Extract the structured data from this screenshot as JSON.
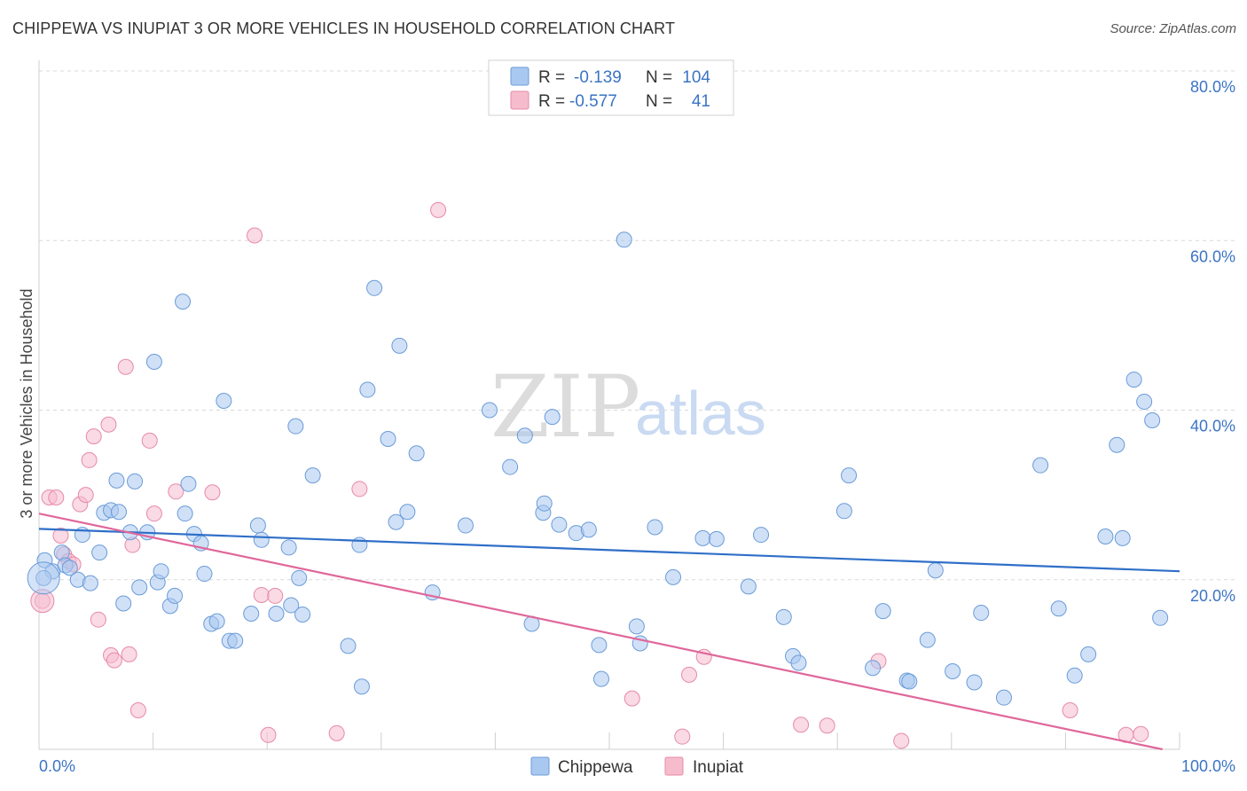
{
  "title": "CHIPPEWA VS INUPIAT 3 OR MORE VEHICLES IN HOUSEHOLD CORRELATION CHART",
  "source": "Source: ZipAtlas.com",
  "watermark": {
    "left": "ZIP",
    "right": "atlas"
  },
  "colors": {
    "chippewa_fill": "#a9c8f0",
    "chippewa_stroke": "#6a9bd8",
    "chippewa_line": "#2f6fc8",
    "inupiat_fill": "#f6bccd",
    "inupiat_stroke": "#e68aa8",
    "inupiat_line": "#e0679a",
    "tick_color": "#3b74c4",
    "grid": "#d9d9d9"
  },
  "legend_top": {
    "rows": [
      {
        "r_label": "R =",
        "r_value": "-0.139",
        "n_label": "N =",
        "n_value": "104"
      },
      {
        "r_label": "R =",
        "r_value": "-0.577",
        "n_label": "N =",
        "n_value": "41"
      }
    ]
  },
  "legend_bottom": {
    "items": [
      "Chippewa",
      "Inupiat"
    ]
  },
  "chart_data": {
    "type": "scatter",
    "title": "CHIPPEWA VS INUPIAT 3 OR MORE VEHICLES IN HOUSEHOLD CORRELATION CHART",
    "xlabel": "",
    "ylabel": "3 or more Vehicles in Household",
    "xlim": [
      0,
      100
    ],
    "ylim": [
      0,
      80
    ],
    "x_tick_labels": [
      "0.0%",
      "100.0%"
    ],
    "y_ticks": [
      20,
      40,
      60,
      80
    ],
    "y_tick_labels": [
      "20.0%",
      "40.0%",
      "60.0%",
      "80.0%"
    ],
    "grid": true,
    "legend_position": "bottom-center",
    "series": [
      {
        "name": "Chippewa",
        "R": -0.139,
        "N": 104,
        "trend": {
          "x": [
            0,
            100
          ],
          "y": [
            26.0,
            21.0
          ]
        },
        "points": [
          [
            0.5,
            22.3
          ],
          [
            1.2,
            21.0
          ],
          [
            2.0,
            23.2
          ],
          [
            2.3,
            21.7
          ],
          [
            2.7,
            21.4
          ],
          [
            3.4,
            20.0
          ],
          [
            3.8,
            25.3
          ],
          [
            4.5,
            19.6
          ],
          [
            5.3,
            23.2
          ],
          [
            5.7,
            27.9
          ],
          [
            6.3,
            28.2
          ],
          [
            6.8,
            31.7
          ],
          [
            7.4,
            17.2
          ],
          [
            8.0,
            25.6
          ],
          [
            8.4,
            31.6
          ],
          [
            8.8,
            19.1
          ],
          [
            9.5,
            25.6
          ],
          [
            10.1,
            45.7
          ],
          [
            10.4,
            19.7
          ],
          [
            10.7,
            21.0
          ],
          [
            11.5,
            16.9
          ],
          [
            11.9,
            18.1
          ],
          [
            12.6,
            52.8
          ],
          [
            12.8,
            27.8
          ],
          [
            13.1,
            31.3
          ],
          [
            13.6,
            25.4
          ],
          [
            14.2,
            24.3
          ],
          [
            14.5,
            20.7
          ],
          [
            15.1,
            14.8
          ],
          [
            15.6,
            15.1
          ],
          [
            16.2,
            41.1
          ],
          [
            16.7,
            12.8
          ],
          [
            17.2,
            12.8
          ],
          [
            18.6,
            16.0
          ],
          [
            19.2,
            26.4
          ],
          [
            19.5,
            24.7
          ],
          [
            20.8,
            16.0
          ],
          [
            21.9,
            23.8
          ],
          [
            22.1,
            17.0
          ],
          [
            22.5,
            38.1
          ],
          [
            22.8,
            20.2
          ],
          [
            23.1,
            15.9
          ],
          [
            24.0,
            32.3
          ],
          [
            27.1,
            12.2
          ],
          [
            28.1,
            24.1
          ],
          [
            28.3,
            7.4
          ],
          [
            28.8,
            42.4
          ],
          [
            29.4,
            54.4
          ],
          [
            30.6,
            36.6
          ],
          [
            31.3,
            26.8
          ],
          [
            31.6,
            47.6
          ],
          [
            32.3,
            28.0
          ],
          [
            33.1,
            34.9
          ],
          [
            34.5,
            18.5
          ],
          [
            37.4,
            26.4
          ],
          [
            39.5,
            40.0
          ],
          [
            41.3,
            33.3
          ],
          [
            42.6,
            37.0
          ],
          [
            43.2,
            14.8
          ],
          [
            44.2,
            27.9
          ],
          [
            44.3,
            29.0
          ],
          [
            45.0,
            39.2
          ],
          [
            45.6,
            26.5
          ],
          [
            47.1,
            25.5
          ],
          [
            48.2,
            25.9
          ],
          [
            49.1,
            12.3
          ],
          [
            49.3,
            8.3
          ],
          [
            51.3,
            60.1
          ],
          [
            52.4,
            14.5
          ],
          [
            52.7,
            12.5
          ],
          [
            54.0,
            26.2
          ],
          [
            55.6,
            20.3
          ],
          [
            58.2,
            24.9
          ],
          [
            59.4,
            24.8
          ],
          [
            62.2,
            19.2
          ],
          [
            63.3,
            25.3
          ],
          [
            65.3,
            15.6
          ],
          [
            66.1,
            11.0
          ],
          [
            66.6,
            10.2
          ],
          [
            70.6,
            28.1
          ],
          [
            71.0,
            32.3
          ],
          [
            73.1,
            9.6
          ],
          [
            74.0,
            16.3
          ],
          [
            76.1,
            8.1
          ],
          [
            76.3,
            8.0
          ],
          [
            77.9,
            12.9
          ],
          [
            78.6,
            21.1
          ],
          [
            80.1,
            9.2
          ],
          [
            82.0,
            7.9
          ],
          [
            82.6,
            16.1
          ],
          [
            84.6,
            6.1
          ],
          [
            87.8,
            33.5
          ],
          [
            89.4,
            16.6
          ],
          [
            90.8,
            8.7
          ],
          [
            92.0,
            11.2
          ],
          [
            93.5,
            25.1
          ],
          [
            94.5,
            35.9
          ],
          [
            95.0,
            24.9
          ],
          [
            96.0,
            43.6
          ],
          [
            96.9,
            41.0
          ],
          [
            97.6,
            38.8
          ],
          [
            98.3,
            15.5
          ],
          [
            0.4,
            20.2
          ],
          [
            7.0,
            28.0
          ]
        ]
      },
      {
        "name": "Inupiat",
        "R": -0.577,
        "N": 41,
        "trend": {
          "x": [
            0,
            98.5
          ],
          "y": [
            27.8,
            0.0
          ]
        },
        "points": [
          [
            0.3,
            17.5
          ],
          [
            0.9,
            29.7
          ],
          [
            1.5,
            29.7
          ],
          [
            1.9,
            25.2
          ],
          [
            2.2,
            23.0
          ],
          [
            2.6,
            22.2
          ],
          [
            3.0,
            21.8
          ],
          [
            3.6,
            28.9
          ],
          [
            4.1,
            30.0
          ],
          [
            4.4,
            34.1
          ],
          [
            4.8,
            36.9
          ],
          [
            5.2,
            15.3
          ],
          [
            6.1,
            38.3
          ],
          [
            6.3,
            11.1
          ],
          [
            6.6,
            10.5
          ],
          [
            7.6,
            45.1
          ],
          [
            7.9,
            11.2
          ],
          [
            8.2,
            24.1
          ],
          [
            8.7,
            4.6
          ],
          [
            9.7,
            36.4
          ],
          [
            10.1,
            27.8
          ],
          [
            12.0,
            30.4
          ],
          [
            15.2,
            30.3
          ],
          [
            18.9,
            60.6
          ],
          [
            19.5,
            18.2
          ],
          [
            20.1,
            1.7
          ],
          [
            20.7,
            18.1
          ],
          [
            26.1,
            1.9
          ],
          [
            28.1,
            30.7
          ],
          [
            35.0,
            63.6
          ],
          [
            52.0,
            6.0
          ],
          [
            56.4,
            1.5
          ],
          [
            57.0,
            8.8
          ],
          [
            58.3,
            10.9
          ],
          [
            66.8,
            2.9
          ],
          [
            69.1,
            2.8
          ],
          [
            73.6,
            10.4
          ],
          [
            75.6,
            1.0
          ],
          [
            90.4,
            4.6
          ],
          [
            95.3,
            1.7
          ],
          [
            96.6,
            1.8
          ]
        ]
      }
    ]
  }
}
